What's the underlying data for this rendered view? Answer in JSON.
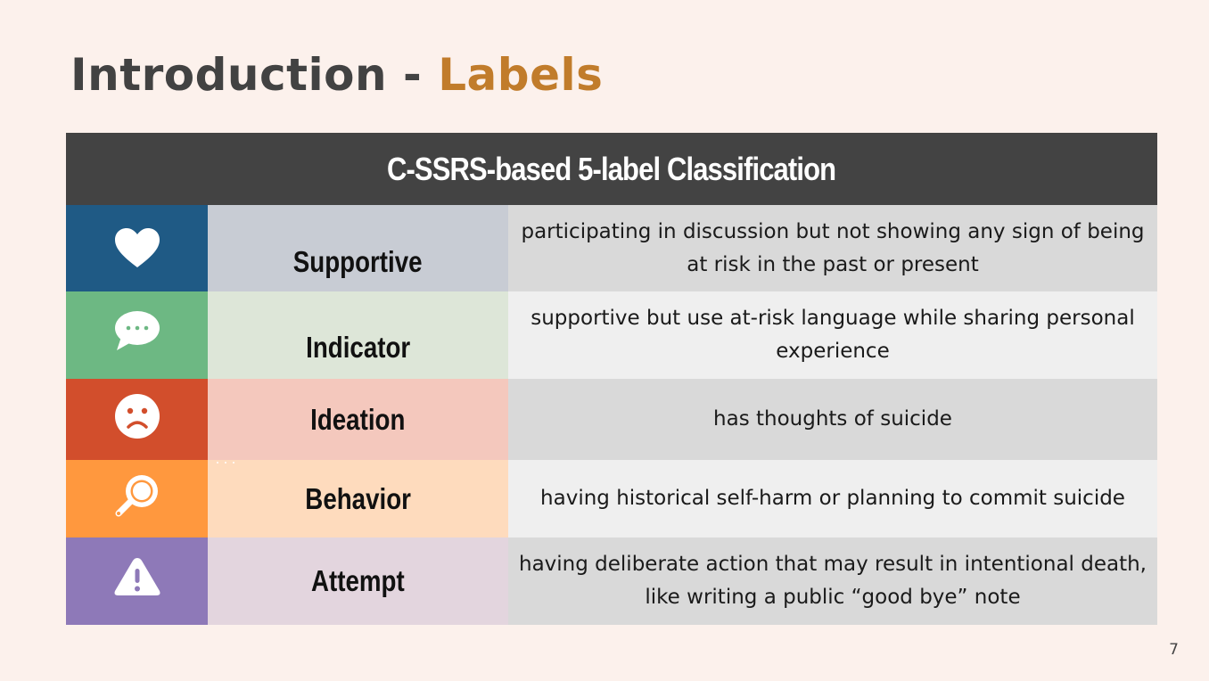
{
  "slide": {
    "title_main": "Introduction - ",
    "title_accent": "Labels",
    "page_number": "7"
  },
  "colors": {
    "background": "#fcf1ec",
    "title_text": "#424242",
    "title_accent": "#c17c2b",
    "header_bg": "#434343"
  },
  "table": {
    "header": "C-SSRS-based 5-label Classification",
    "rows": [
      {
        "icon": "heart-icon",
        "label": "Supportive",
        "description": "participating in discussion but not showing any sign of being at risk in the past or present",
        "icon_color": "#1f5a85",
        "label_color": "#c8ccd4"
      },
      {
        "icon": "speech-bubble-icon",
        "label": "Indicator",
        "description": "supportive but use at-risk language while sharing personal experience",
        "icon_color": "#6db883",
        "label_color": "#dde6d8"
      },
      {
        "icon": "sad-face-icon",
        "label": "Ideation",
        "description": "has thoughts of suicide",
        "icon_color": "#d24e2c",
        "label_color": "#f4c8bd"
      },
      {
        "icon": "magnifier-icon",
        "label": "Behavior",
        "description": "having historical self-harm or planning to commit suicide",
        "icon_color": "#ff983e",
        "label_color": "#fedbbd"
      },
      {
        "icon": "warning-icon",
        "label": "Attempt",
        "description": "having deliberate action that may result in intentional death, like writing a public “good bye” note",
        "icon_color": "#8e79b8",
        "label_color": "#e3d5de"
      }
    ]
  }
}
